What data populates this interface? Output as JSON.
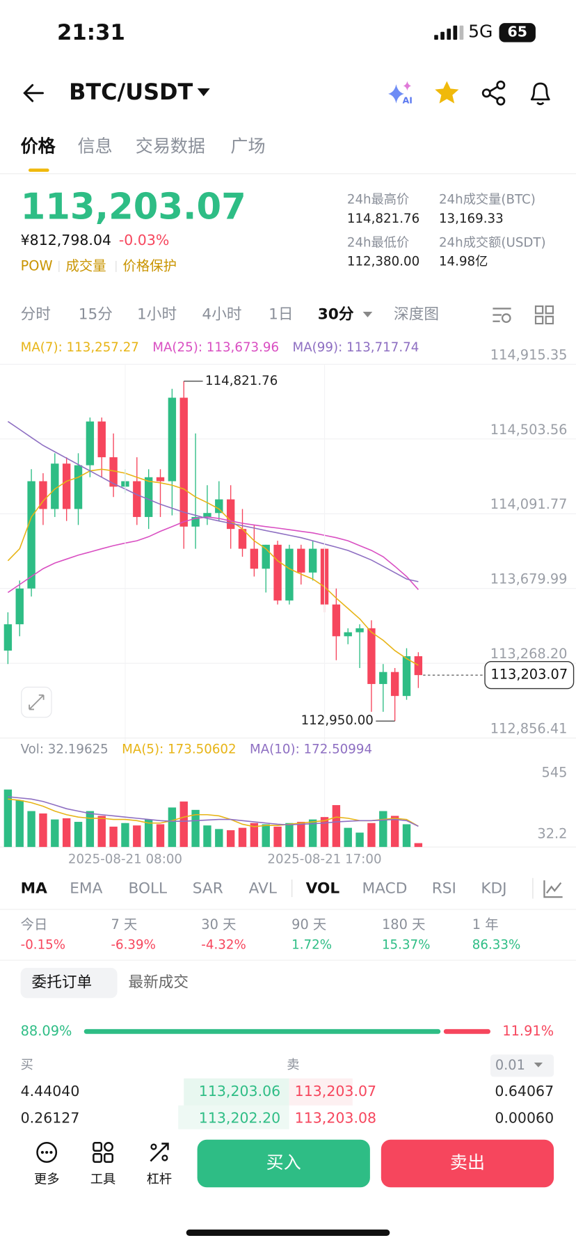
{
  "status_bar": {
    "time": "21:31",
    "network": "5G",
    "battery": "65"
  },
  "header": {
    "pair": "BTC/USDT"
  },
  "tabs": [
    "价格",
    "信息",
    "交易数据",
    "广场"
  ],
  "price": {
    "last": "113,203.07",
    "cny": "¥812,798.04",
    "change": "-0.03%",
    "tags": [
      "POW",
      "成交量",
      "价格保护"
    ]
  },
  "stats": [
    {
      "label": "24h最高价",
      "value": "114,821.76"
    },
    {
      "label": "24h成交量(BTC)",
      "value": "13,169.33"
    },
    {
      "label": "24h最低价",
      "value": "112,380.00"
    },
    {
      "label": "24h成交额(USDT)",
      "value": "14.98亿"
    }
  ],
  "intervals": [
    "分时",
    "15分",
    "1小时",
    "4小时",
    "1日",
    "30分",
    "深度图"
  ],
  "chart_data": [
    {
      "type": "candlestick",
      "up_color": "#2ebd85",
      "down_color": "#f6465d",
      "grid": true,
      "ylim": [
        112856.41,
        114915.35
      ],
      "yticks": [
        {
          "value": 112856.41,
          "label": "112,856.41"
        },
        {
          "value": 113268.2,
          "label": "113,268.20"
        },
        {
          "value": 113679.99,
          "label": "113,679.99"
        },
        {
          "value": 114091.77,
          "label": "114,091.77"
        },
        {
          "value": 114503.56,
          "label": "114,503.56"
        },
        {
          "value": 114915.35,
          "label": "114,915.35"
        }
      ],
      "open": [
        113338,
        113483,
        113680,
        114271,
        114118,
        114368,
        114118,
        114359,
        114600,
        114403,
        114241,
        114271,
        114074,
        114293,
        114271,
        114731,
        114021,
        114074,
        114096,
        114171,
        114008,
        113899,
        113789,
        113921,
        113614,
        113899,
        113768,
        113899,
        113592,
        113417,
        113439,
        113461,
        113154,
        113220,
        113088,
        113307
      ],
      "high": [
        113549,
        113724,
        114337,
        114315,
        114425,
        114403,
        114425,
        114622,
        114622,
        114534,
        114337,
        114403,
        114337,
        114337,
        114780,
        114821.76,
        114534,
        114249,
        114271,
        114249,
        114118,
        114030,
        113921,
        113943,
        113921,
        113921,
        113943,
        113908,
        113680,
        113461,
        113483,
        113505,
        113264,
        113242,
        113351,
        113329
      ],
      "low": [
        113264,
        113417,
        113636,
        114030,
        114074,
        114052,
        114030,
        114293,
        114293,
        114184,
        114206,
        114030,
        114008,
        114074,
        114083,
        113899,
        113899,
        114030,
        114052,
        113899,
        113855,
        113746,
        113658,
        113592,
        113592,
        113702,
        113724,
        113549,
        113285,
        113373,
        113242,
        113001,
        113001,
        112950,
        113067,
        113132
      ],
      "close": [
        113483,
        113680,
        114271,
        114118,
        114368,
        114118,
        114359,
        114600,
        114403,
        114241,
        114271,
        114074,
        114293,
        114271,
        114731,
        114021,
        114074,
        114096,
        114171,
        114008,
        113899,
        113789,
        113921,
        113614,
        113899,
        113768,
        113899,
        113592,
        113417,
        113439,
        113461,
        113154,
        113220,
        113088,
        113307,
        113203.07
      ],
      "lines": [
        {
          "name": "MA(7): 113,257.27",
          "color": "#e7b416",
          "values": [
            113833,
            113899,
            114074,
            114162,
            114228,
            114271,
            114293,
            114328,
            114337,
            114328,
            114315,
            114293,
            114271,
            114262,
            114249,
            114228,
            114184,
            114153,
            114118,
            114052,
            114008,
            113943,
            113899,
            113833,
            113789,
            113759,
            113732,
            113689,
            113627,
            113570,
            113513,
            113439,
            113395,
            113338,
            113294,
            113257.27
          ]
        },
        {
          "name": "MA(25): 113,673.96",
          "color": "#d94fc2",
          "values": [
            113658,
            113702,
            113746,
            113789,
            113820,
            113842,
            113864,
            113881,
            113899,
            113916,
            113930,
            113943,
            113965,
            113995,
            114021,
            114048,
            114066,
            114074,
            114066,
            114052,
            114039,
            114030,
            114021,
            114013,
            114004,
            113995,
            113986,
            113973,
            113960,
            113943,
            113916,
            113890,
            113855,
            113802,
            113746,
            113673.96
          ]
        },
        {
          "name": "MA(99): 113,717.74",
          "color": "#8e6fc2",
          "values": [
            114600,
            114556,
            114512,
            114468,
            114433,
            114398,
            114363,
            114328,
            114293,
            114258,
            114228,
            114197,
            114171,
            114144,
            114122,
            114100,
            114083,
            114066,
            114052,
            114039,
            114026,
            114013,
            113999,
            113986,
            113973,
            113960,
            113943,
            113925,
            113908,
            113890,
            113864,
            113837,
            113802,
            113767,
            113732,
            113717.74
          ]
        }
      ],
      "annotations": [
        {
          "value": 114821.76,
          "label": "114,821.76"
        },
        {
          "value": 112950.0,
          "label": "112,950.00"
        }
      ],
      "last_price": {
        "value": 113203.07,
        "label": "113,203.07"
      }
    },
    {
      "type": "bar",
      "ylim": [
        0,
        545
      ],
      "yticks": [
        32.2,
        545
      ],
      "categories": [
        null,
        null,
        null,
        null,
        null,
        null,
        null,
        null,
        null,
        null,
        "2025-08-21 08:00",
        null,
        null,
        null,
        null,
        null,
        null,
        null,
        null,
        null,
        null,
        null,
        null,
        null,
        null,
        null,
        null,
        "2025-08-21 17:00",
        null,
        null,
        null,
        null,
        null,
        null,
        null,
        null
      ],
      "series": [
        {
          "name": "Vol: 32.19625",
          "values": [
            480,
            390,
            300,
            280,
            230,
            240,
            210,
            300,
            260,
            170,
            200,
            180,
            230,
            190,
            330,
            380,
            310,
            180,
            150,
            140,
            160,
            200,
            190,
            170,
            200,
            210,
            230,
            250,
            350,
            160,
            120,
            200,
            300,
            260,
            190,
            32.19625
          ]
        }
      ],
      "lines": [
        {
          "name": "MA(5): 173.50602",
          "color": "#e7b416",
          "values": [
            400,
            390,
            370,
            340,
            300,
            270,
            250,
            240,
            240,
            230,
            230,
            220,
            200,
            200,
            220,
            250,
            270,
            270,
            260,
            230,
            190,
            170,
            180,
            180,
            190,
            200,
            210,
            220,
            250,
            240,
            220,
            220,
            230,
            240,
            230,
            173.50602
          ]
        },
        {
          "name": "MA(10): 172.50994",
          "color": "#8e6fc2",
          "values": [
            420,
            410,
            400,
            380,
            350,
            320,
            300,
            280,
            270,
            260,
            250,
            240,
            230,
            220,
            215,
            215,
            220,
            225,
            230,
            230,
            220,
            210,
            200,
            190,
            185,
            190,
            195,
            200,
            210,
            215,
            220,
            220,
            225,
            230,
            220,
            172.50994
          ]
        }
      ]
    }
  ],
  "indicators": [
    "MA",
    "EMA",
    "BOLL",
    "SAR",
    "AVL",
    "VOL",
    "MACD",
    "RSI",
    "KDJ"
  ],
  "performance": [
    {
      "period": "今日",
      "change": "-0.15%"
    },
    {
      "period": "7 天",
      "change": "-6.39%"
    },
    {
      "period": "30 天",
      "change": "-4.32%"
    },
    {
      "period": "90 天",
      "change": "1.72%"
    },
    {
      "period": "180 天",
      "change": "15.37%"
    },
    {
      "period": "1 年",
      "change": "86.33%"
    }
  ],
  "order_tabs": [
    "委托订单",
    "最新成交"
  ],
  "ratio": {
    "buy": {
      "value": 88.09,
      "label": "88.09%"
    },
    "sell": {
      "value": 11.91,
      "label": "11.91%"
    }
  },
  "order_book": {
    "buy_header": "买",
    "sell_header": "卖",
    "precision": "0.01",
    "rows": [
      [
        "4.44040",
        "113,203.06",
        "113,203.07",
        "0.64067"
      ],
      [
        "0.26127",
        "113,202.20",
        "113,203.08",
        "0.00060"
      ]
    ]
  },
  "bottom_bar": {
    "tools": [
      "更多",
      "工具",
      "杠杆"
    ],
    "buy": "买入",
    "sell": "卖出"
  }
}
